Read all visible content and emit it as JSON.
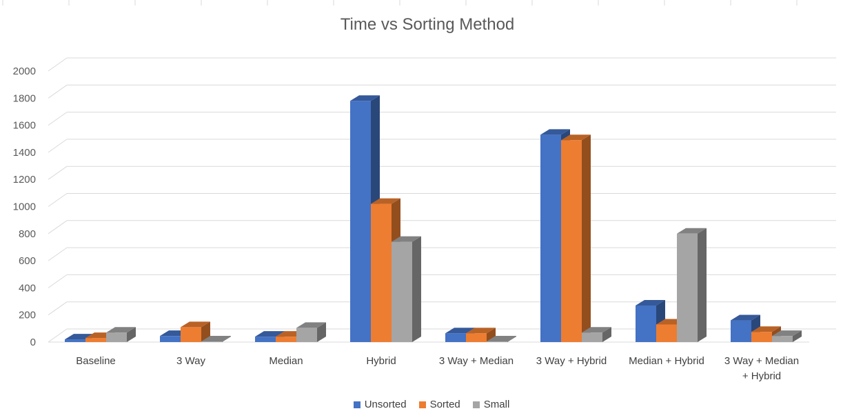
{
  "chart_data": {
    "type": "bar",
    "title": "Time vs Sorting Method",
    "xlabel": "",
    "ylabel": "",
    "ylim": [
      0,
      2000
    ],
    "yticks": [
      0,
      200,
      400,
      600,
      800,
      1000,
      1200,
      1400,
      1600,
      1800,
      2000
    ],
    "grid": true,
    "legend_position": "bottom",
    "categories": [
      "Baseline",
      "3 Way",
      "Median",
      "Hybrid",
      "3 Way + Median",
      "3 Way + Hybrid",
      "Median + Hybrid",
      "3 Way + Median + Hybrid"
    ],
    "series": [
      {
        "name": "Unsorted",
        "color": "#4472C4",
        "values": [
          20,
          45,
          40,
          1780,
          65,
          1530,
          270,
          160
        ]
      },
      {
        "name": "Sorted",
        "color": "#ED7D31",
        "values": [
          30,
          110,
          40,
          1020,
          65,
          1490,
          130,
          75
        ]
      },
      {
        "name": "Small",
        "color": "#A5A5A5",
        "values": [
          70,
          5,
          105,
          740,
          5,
          70,
          800,
          45
        ]
      }
    ]
  }
}
